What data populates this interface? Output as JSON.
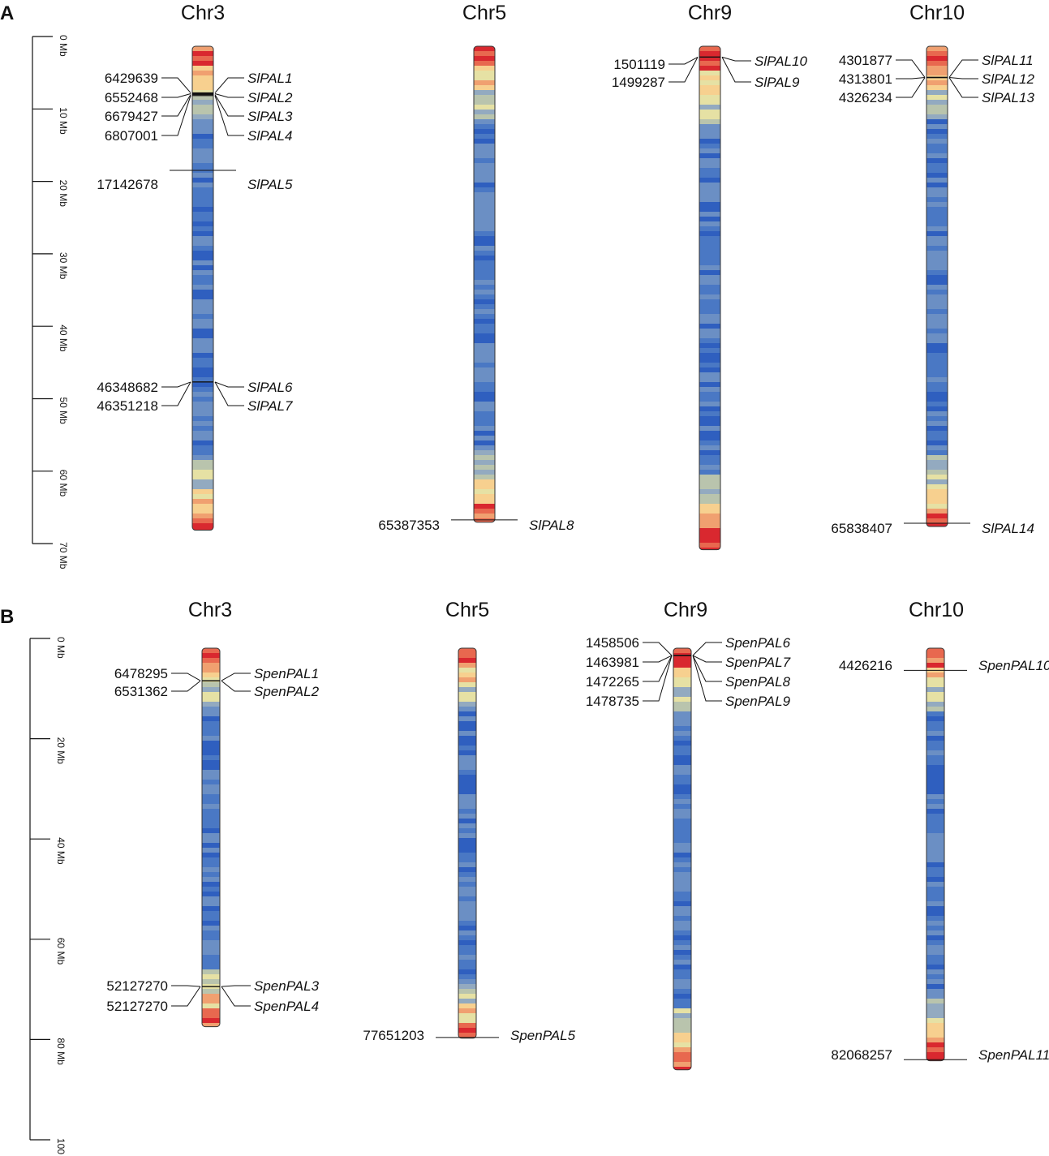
{
  "figure": {
    "panels": [
      {
        "id": "A",
        "label": "A",
        "scale": {
          "unit": "Mb",
          "max": 70,
          "ticks": [
            {
              "value": 0,
              "label": "0 Mb"
            },
            {
              "value": 10,
              "label": "10 Mb"
            },
            {
              "value": 20,
              "label": "20 Mb"
            },
            {
              "value": 30,
              "label": "30 Mb"
            },
            {
              "value": 40,
              "label": "40 Mb"
            },
            {
              "value": 50,
              "label": "50 Mb"
            },
            {
              "value": 60,
              "label": "60 Mb"
            },
            {
              "value": 70,
              "label": "70 Mb"
            }
          ]
        },
        "chromosomes": [
          {
            "name": "Chr3",
            "length_mb": 66.8,
            "density_seed": 3,
            "genes": [
              {
                "pos": "6429639",
                "gene": "SlPAL1"
              },
              {
                "pos": "6552468",
                "gene": "SlPAL2"
              },
              {
                "pos": "6679427",
                "gene": "SlPAL3"
              },
              {
                "pos": "6807001",
                "gene": "SlPAL4"
              },
              {
                "pos": "17142678",
                "gene": "SlPAL5"
              },
              {
                "pos": "46348682",
                "gene": "SlPAL6"
              },
              {
                "pos": "46351218",
                "gene": "SlPAL7"
              }
            ]
          },
          {
            "name": "Chr5",
            "length_mb": 65.7,
            "density_seed": 5,
            "genes": [
              {
                "pos": "65387353",
                "gene": "SlPAL8"
              }
            ]
          },
          {
            "name": "Chr9",
            "length_mb": 69.5,
            "density_seed": 9,
            "genes": [
              {
                "pos": "1501119",
                "gene": "SlPAL10"
              },
              {
                "pos": "1499287",
                "gene": "SlPAL9"
              }
            ]
          },
          {
            "name": "Chr10",
            "length_mb": 66.3,
            "density_seed": 10,
            "genes": [
              {
                "pos": "4301877",
                "gene": "SlPAL11"
              },
              {
                "pos": "4313801",
                "gene": "SlPAL12"
              },
              {
                "pos": "4326234",
                "gene": "SlPAL13"
              },
              {
                "pos": "65838407",
                "gene": "SlPAL14"
              }
            ]
          }
        ]
      },
      {
        "id": "B",
        "label": "B",
        "scale": {
          "unit": "Mb",
          "max": 100,
          "ticks": [
            {
              "value": 0,
              "label": "0 Mb"
            },
            {
              "value": 20,
              "label": "20 Mb"
            },
            {
              "value": 40,
              "label": "40 Mb"
            },
            {
              "value": 60,
              "label": "60 Mb"
            },
            {
              "value": 80,
              "label": "80 Mb"
            },
            {
              "value": 100,
              "label": "100 Mb"
            }
          ]
        },
        "chromosomes": [
          {
            "name": "Chr3",
            "length_mb": 75.5,
            "density_seed": 13,
            "genes": [
              {
                "pos": "6478295",
                "gene": "SpenPAL1"
              },
              {
                "pos": "6531362",
                "gene": "SpenPAL2"
              },
              {
                "pos": "52127270",
                "gene": "SpenPAL3"
              },
              {
                "pos": "52127270",
                "gene": "SpenPAL4"
              }
            ]
          },
          {
            "name": "Chr5",
            "length_mb": 77.8,
            "density_seed": 15,
            "genes": [
              {
                "pos": "77651203",
                "gene": "SpenPAL5"
              }
            ]
          },
          {
            "name": "Chr9",
            "length_mb": 84.1,
            "density_seed": 19,
            "genes": [
              {
                "pos": "1458506",
                "gene": "SpenPAL6"
              },
              {
                "pos": "1463981",
                "gene": "SpenPAL7"
              },
              {
                "pos": "1472265",
                "gene": "SpenPAL8"
              },
              {
                "pos": "1478735",
                "gene": "SpenPAL9"
              }
            ]
          },
          {
            "name": "Chr10",
            "length_mb": 82.3,
            "density_seed": 20,
            "genes": [
              {
                "pos": "4426216",
                "gene": "SpenPAL10"
              },
              {
                "pos": "82068257",
                "gene": "SpenPAL11"
              }
            ]
          }
        ]
      }
    ],
    "density_palette": [
      "#2f5fbf",
      "#4a78c4",
      "#6b8fc4",
      "#93aac0",
      "#b9c4ad",
      "#e6e1a4",
      "#f7d08f",
      "#f0a070",
      "#e8684f",
      "#d9282f"
    ]
  }
}
